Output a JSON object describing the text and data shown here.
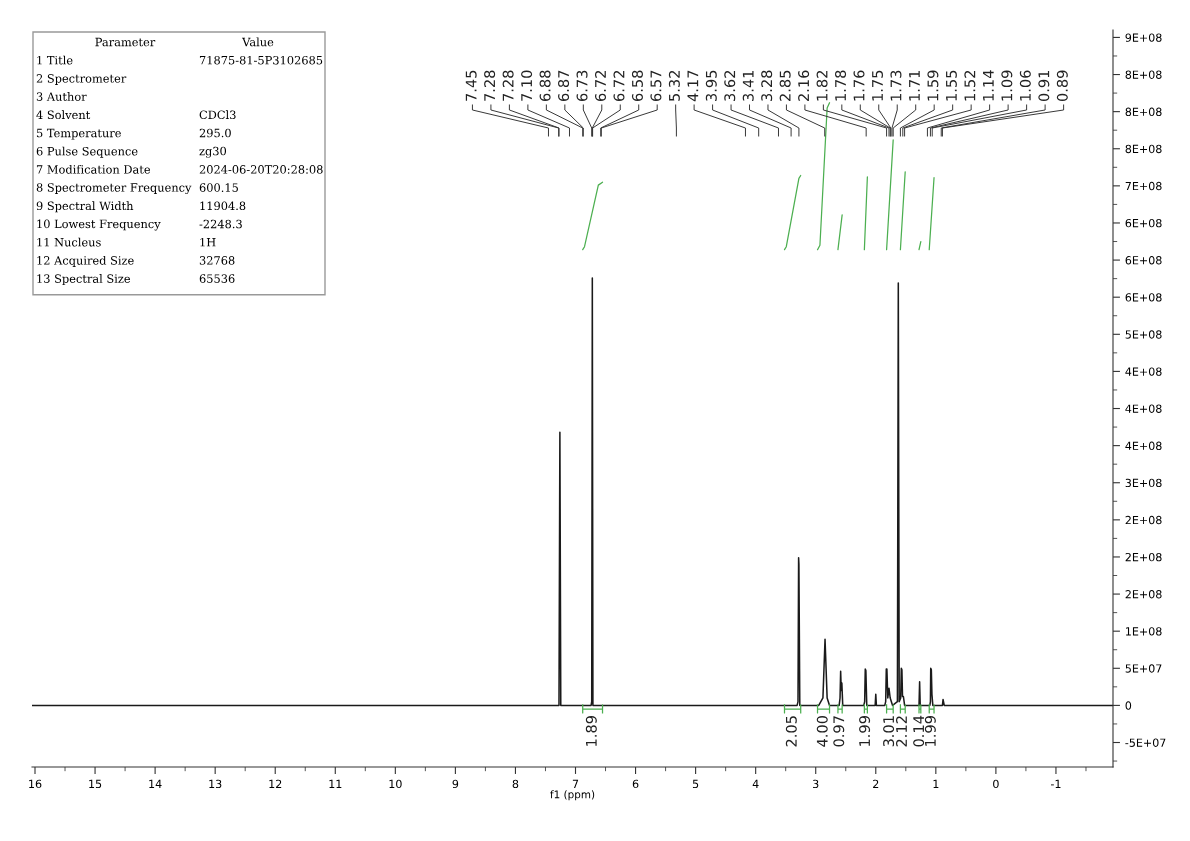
{
  "chart_data": {
    "type": "line",
    "xlabel": "f1 (ppm)",
    "xlim": [
      16.05,
      -1.95
    ],
    "ylim": [
      -83000000,
      910000000
    ],
    "xticks": [
      16,
      15,
      14,
      13,
      12,
      11,
      10,
      9,
      8,
      7,
      6,
      5,
      4,
      3,
      2,
      1,
      0,
      -1
    ],
    "yticks": [
      {
        "value": -50000000,
        "label": "-5E+07"
      },
      0,
      {
        "value": 50000000,
        "label": "5E+07"
      },
      {
        "value": 100000000,
        "label": "1E+08"
      },
      {
        "value": 150000000,
        "label": "2E+08"
      },
      {
        "value": 200000000,
        "label": "2E+08"
      },
      {
        "value": 250000000,
        "label": "2E+08"
      },
      {
        "value": 300000000,
        "label": "3E+08"
      },
      {
        "value": 350000000,
        "label": "4E+08"
      },
      {
        "value": 400000000,
        "label": "4E+08"
      },
      {
        "value": 450000000,
        "label": "4E+08"
      },
      {
        "value": 500000000,
        "label": "5E+08"
      },
      {
        "value": 550000000,
        "label": "6E+08"
      },
      {
        "value": 600000000,
        "label": "6E+08"
      },
      {
        "value": 650000000,
        "label": "6E+08"
      },
      {
        "value": 700000000,
        "label": "7E+08"
      },
      {
        "value": 750000000,
        "label": "8E+08"
      },
      {
        "value": 800000000,
        "label": "8E+08"
      },
      {
        "value": 850000000,
        "label": "8E+08"
      },
      {
        "value": 900000000,
        "label": "9E+08"
      }
    ],
    "series": [
      {
        "color": "#1a1a1a",
        "x": [
          16.05,
          7.45,
          7.4,
          7.275,
          7.26,
          7.245,
          7.1,
          6.74,
          6.73,
          6.72,
          6.71,
          5.32,
          4.17,
          3.95,
          3.62,
          3.41,
          3.31,
          3.295,
          3.285,
          3.28,
          3.265,
          2.95,
          2.88,
          2.845,
          2.81,
          2.77,
          2.61,
          2.595,
          2.585,
          2.575,
          2.565,
          2.55,
          2.2,
          2.185,
          2.175,
          2.165,
          2.15,
          2.01,
          2.0,
          1.99,
          1.85,
          1.835,
          1.825,
          1.815,
          1.8,
          1.78,
          1.76,
          1.72,
          1.64,
          1.625,
          1.61,
          1.585,
          1.575,
          1.565,
          1.555,
          1.54,
          1.52,
          1.28,
          1.27,
          1.26,
          1.1,
          1.09,
          1.085,
          1.075,
          1.065,
          1.05,
          0.89,
          0.88,
          0.86,
          -1.95
        ],
        "values": [
          0,
          0,
          0,
          0,
          368000000,
          0,
          0,
          0,
          5000000,
          576000000,
          0,
          0,
          0,
          0,
          0,
          0,
          0,
          5000000,
          199000000,
          190000000,
          0,
          0,
          10000000,
          89000000,
          10000000,
          0,
          0,
          10000000,
          46000000,
          20000000,
          30000000,
          0,
          0,
          5000000,
          49000000,
          47000000,
          0,
          0,
          15000000,
          0,
          0,
          5000000,
          49000000,
          49000000,
          10000000,
          23000000,
          10000000,
          0,
          5000000,
          569000000,
          5000000,
          10000000,
          50000000,
          48000000,
          12000000,
          12000000,
          0,
          0,
          32000000,
          0,
          0,
          5000000,
          50000000,
          48000000,
          15000000,
          0,
          0,
          8000000,
          0,
          0
        ]
      },
      {
        "color": "#4caf50",
        "x": [
          6.88,
          6.85,
          6.62,
          6.55
        ],
        "values": [
          614000000,
          618000000,
          701000000,
          705000000
        ]
      },
      {
        "color": "#4caf50",
        "x": [
          3.52,
          3.49,
          3.28,
          3.25
        ],
        "values": [
          614000000,
          618000000,
          710000000,
          714000000
        ]
      },
      {
        "color": "#4caf50",
        "x": [
          2.97,
          2.93,
          2.81,
          2.77
        ],
        "values": [
          614000000,
          620000000,
          805000000,
          812000000
        ]
      },
      {
        "color": "#4caf50",
        "x": [
          2.63,
          2.56
        ],
        "values": [
          614000000,
          661000000
        ]
      },
      {
        "color": "#4caf50",
        "x": [
          2.19,
          2.14
        ],
        "values": [
          614000000,
          712000000
        ]
      },
      {
        "color": "#4caf50",
        "x": [
          1.82,
          1.71
        ],
        "values": [
          614000000,
          762000000
        ]
      },
      {
        "color": "#4caf50",
        "x": [
          1.59,
          1.51
        ],
        "values": [
          614000000,
          719000000
        ]
      },
      {
        "color": "#4caf50",
        "x": [
          1.28,
          1.25
        ],
        "values": [
          614000000,
          625000000
        ]
      },
      {
        "color": "#4caf50",
        "x": [
          1.11,
          1.03
        ],
        "values": [
          614000000,
          711000000
        ]
      }
    ],
    "annotations": [
      "Parameter",
      "Value",
      "1 Title",
      "71875-81-5P3102685",
      "2 Spectrometer",
      null,
      "3 Author",
      null,
      "4 Solvent",
      "CDCl3",
      "5 Temperature",
      "295.0",
      "6 Pulse Sequence",
      "zg30",
      "7 Modification Date",
      "2024-06-20T20:28:08",
      "8 Spectrometer Frequency",
      "600.15",
      "9 Spectral Width",
      "11904.8",
      "10 Lowest Frequency",
      "-2248.3",
      "11 Nucleus",
      "1H",
      "12 Acquired Size",
      "32768",
      "13 Spectral Size",
      "65536",
      {
        "text": "7.45",
        "x": 7.45
      },
      {
        "text": "7.28",
        "x": 7.28
      },
      {
        "text": "7.28",
        "x": 7.275
      },
      {
        "text": "7.10",
        "x": 7.1
      },
      {
        "text": "6.88",
        "x": 6.88
      },
      {
        "text": "6.87",
        "x": 6.87
      },
      {
        "text": "6.73",
        "x": 6.73
      },
      {
        "text": "6.72",
        "x": 6.72
      },
      {
        "text": "6.72",
        "x": 6.715
      },
      {
        "text": "6.58",
        "x": 6.58
      },
      {
        "text": "6.57",
        "x": 6.57
      },
      {
        "text": "5.32",
        "x": 5.32
      },
      {
        "text": "4.17",
        "x": 4.17
      },
      {
        "text": "3.95",
        "x": 3.95
      },
      {
        "text": "3.62",
        "x": 3.62
      },
      {
        "text": "3.41",
        "x": 3.41
      },
      {
        "text": "3.28",
        "x": 3.28
      },
      {
        "text": "2.85",
        "x": 2.85
      },
      {
        "text": "2.16",
        "x": 2.16
      },
      {
        "text": "1.82",
        "x": 1.82
      },
      {
        "text": "1.78",
        "x": 1.78
      },
      {
        "text": "1.76",
        "x": 1.76
      },
      {
        "text": "1.75",
        "x": 1.75
      },
      {
        "text": "1.73",
        "x": 1.73
      },
      {
        "text": "1.71",
        "x": 1.71
      },
      {
        "text": "1.59",
        "x": 1.59
      },
      {
        "text": "1.55",
        "x": 1.55
      },
      {
        "text": "1.52",
        "x": 1.52
      },
      {
        "text": "1.14",
        "x": 1.14
      },
      {
        "text": "1.09",
        "x": 1.09
      },
      {
        "text": "1.06",
        "x": 1.06
      },
      {
        "text": "0.91",
        "x": 0.91
      },
      {
        "text": "0.89",
        "x": 0.89
      },
      "1.89",
      "2.05",
      "4.00",
      "0.97",
      "1.99",
      "3.01",
      "2.12",
      "0.14",
      "1.99"
    ]
  }
}
